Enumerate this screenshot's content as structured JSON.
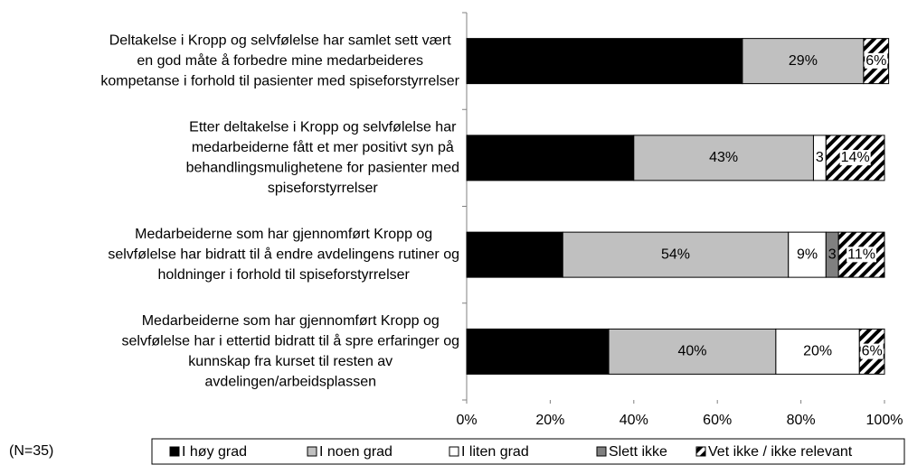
{
  "chart_data": {
    "type": "stacked-bar-horizontal",
    "categories": [
      [
        "Deltakelse i Kropp og selvfølelse har samlet sett vært",
        "en god måte å forbedre mine medarbeideres",
        "kompetanse i forhold til pasienter med spiseforstyrrelser"
      ],
      [
        "Etter deltakelse i Kropp og selvfølelse har",
        "medarbeiderne fått et mer positivt syn på",
        "behandlingsmulighetene for pasienter med",
        "spiseforstyrrelser"
      ],
      [
        "Medarbeiderne som har gjennomført Kropp og",
        "selvfølelse har bidratt til å endre avdelingens rutiner og",
        "holdninger i forhold til spiseforstyrrelser"
      ],
      [
        "Medarbeiderne som har gjennomført Kropp og",
        "selvfølelse har i ettertid bidratt til å spre erfaringer og",
        "kunnskap fra kurset til resten av",
        "avdelingen/arbeidsplassen"
      ]
    ],
    "series": [
      {
        "name": "I høy grad",
        "color": "#000000",
        "values": [
          66,
          40,
          23,
          34
        ],
        "value_labels": [
          "66%",
          "40%",
          "23%",
          "34%"
        ]
      },
      {
        "name": "I noen grad",
        "color": "#c0c0c0",
        "values": [
          29,
          43,
          54,
          40
        ],
        "value_labels": [
          "29%",
          "43%",
          "54%",
          "40%"
        ]
      },
      {
        "name": "I liten grad",
        "color": "#ffffff",
        "values": [
          null,
          3,
          9,
          20
        ],
        "value_labels": [
          null,
          "3",
          "9%",
          "20%"
        ]
      },
      {
        "name": "Slett ikke",
        "color": "#808080",
        "values": [
          null,
          null,
          3,
          null
        ],
        "value_labels": [
          null,
          null,
          "3",
          null
        ]
      },
      {
        "name": "Vet ikke / ikke relevant",
        "color": "hatch",
        "values": [
          6,
          14,
          11,
          6
        ],
        "value_labels": [
          "6%",
          "14%",
          "11%",
          "6%"
        ]
      }
    ],
    "xlim": [
      0,
      100
    ],
    "xticks": [
      {
        "value": 0,
        "label": "0%"
      },
      {
        "value": 20,
        "label": "20%"
      },
      {
        "value": 40,
        "label": "40%"
      },
      {
        "value": 60,
        "label": "60%"
      },
      {
        "value": 80,
        "label": "80%"
      },
      {
        "value": 100,
        "label": "100%"
      }
    ],
    "annotation": "(N=35)",
    "legend": "bottom"
  }
}
